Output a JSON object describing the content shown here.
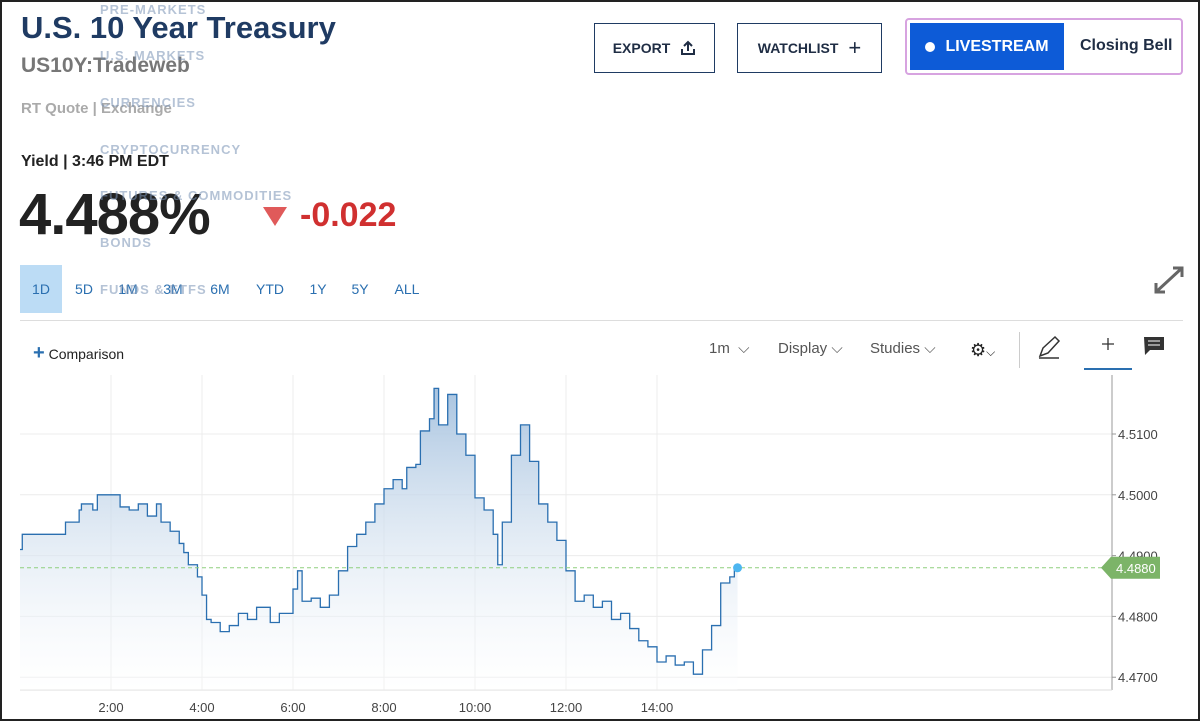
{
  "header": {
    "title": "U.S. 10 Year Treasury",
    "symbol": "US10Y:Tradeweb",
    "quote_source": "RT Quote | Exchange"
  },
  "menu": [
    "PRE-MARKETS",
    "U.S. MARKETS",
    "CURRENCIES",
    "CRYPTOCURRENCY",
    "FUTURES & COMMODITIES",
    "BONDS",
    "FUNDS & ETFS"
  ],
  "actions": {
    "export": "EXPORT",
    "watchlist": "WATCHLIST",
    "livestream": "LIVESTREAM",
    "closing_bell": "Closing Bell"
  },
  "quote": {
    "label": "Yield | 3:46 PM EDT",
    "price": "4.488%",
    "change": "-0.022"
  },
  "ranges": [
    "1D",
    "5D",
    "1M",
    "3M",
    "6M",
    "YTD",
    "1Y",
    "5Y",
    "ALL"
  ],
  "toolbar": {
    "comparison": "Comparison",
    "interval": "1m",
    "display": "Display",
    "studies": "Studies"
  },
  "chart_data": {
    "type": "line",
    "x": [
      0,
      0.05,
      0.8,
      1.0,
      1.3,
      1.35,
      1.4,
      1.6,
      1.7,
      2.0,
      2.2,
      2.4,
      2.6,
      2.8,
      3.0,
      3.1,
      3.3,
      3.5,
      3.6,
      3.7,
      3.9,
      4.0,
      4.1,
      4.2,
      4.4,
      4.6,
      4.8,
      5.0,
      5.2,
      5.5,
      5.7,
      6.0,
      6.1,
      6.2,
      6.4,
      6.6,
      6.8,
      7.0,
      7.2,
      7.4,
      7.6,
      7.8,
      8.0,
      8.2,
      8.4,
      8.5,
      8.7,
      8.8,
      9.0,
      9.1,
      9.2,
      9.4,
      9.6,
      9.8,
      10.0,
      10.2,
      10.4,
      10.5,
      10.6,
      10.8,
      11.0,
      11.2,
      11.4,
      11.6,
      11.8,
      12.0,
      12.2,
      12.4,
      12.6,
      12.8,
      13.0,
      13.2,
      13.4,
      13.6,
      13.8,
      14.0,
      14.2,
      14.4,
      14.6,
      14.8,
      15.0,
      15.2,
      15.4,
      15.5,
      15.6,
      15.7,
      15.77
    ],
    "series": [
      {
        "color": "#2a6fb0",
        "values": [
          4.491,
          4.4935,
          4.4935,
          4.4955,
          4.4975,
          4.4985,
          4.4985,
          4.4975,
          4.5,
          4.5,
          4.498,
          4.4975,
          4.4985,
          4.4965,
          4.4985,
          4.4955,
          4.494,
          4.492,
          4.4905,
          4.4885,
          4.4865,
          4.4835,
          4.4795,
          4.479,
          4.4775,
          4.4785,
          4.4805,
          4.4795,
          4.4815,
          4.479,
          4.4805,
          4.4845,
          4.4875,
          4.4825,
          4.483,
          4.4815,
          4.4835,
          4.4875,
          4.4915,
          4.4935,
          4.4955,
          4.4985,
          4.501,
          4.5025,
          4.501,
          4.5045,
          4.505,
          4.5105,
          4.5125,
          4.5175,
          4.5115,
          4.5165,
          4.51,
          4.5065,
          4.4995,
          4.4975,
          4.4935,
          4.4885,
          4.4955,
          4.5065,
          4.5115,
          4.5055,
          4.4985,
          4.4955,
          4.4925,
          4.4875,
          4.4825,
          4.4835,
          4.4815,
          4.4825,
          4.4795,
          4.4805,
          4.478,
          4.476,
          4.475,
          4.4725,
          4.4735,
          4.472,
          4.4725,
          4.4705,
          4.4745,
          4.4785,
          4.4855,
          4.4855,
          4.4865,
          4.4875,
          4.488
        ]
      }
    ],
    "xlim": [
      0,
      24
    ],
    "xticks": [
      {
        "value": 2,
        "label": "2:00"
      },
      {
        "value": 4,
        "label": "4:00"
      },
      {
        "value": 6,
        "label": "6:00"
      },
      {
        "value": 8,
        "label": "8:00"
      },
      {
        "value": 10,
        "label": "10:00"
      },
      {
        "value": 12,
        "label": "12:00"
      },
      {
        "value": 14,
        "label": "14:00"
      }
    ],
    "ylim": [
      4.4679,
      4.5197
    ],
    "yticks": [
      {
        "value": 4.47,
        "label": "4.4700"
      },
      {
        "value": 4.48,
        "label": "4.4800"
      },
      {
        "value": 4.49,
        "label": "4.4900"
      },
      {
        "value": 4.5,
        "label": "4.5000"
      },
      {
        "value": 4.51,
        "label": "4.5100"
      }
    ],
    "last_label": {
      "value": 4.488,
      "label": "4.4880"
    },
    "grid": true
  }
}
